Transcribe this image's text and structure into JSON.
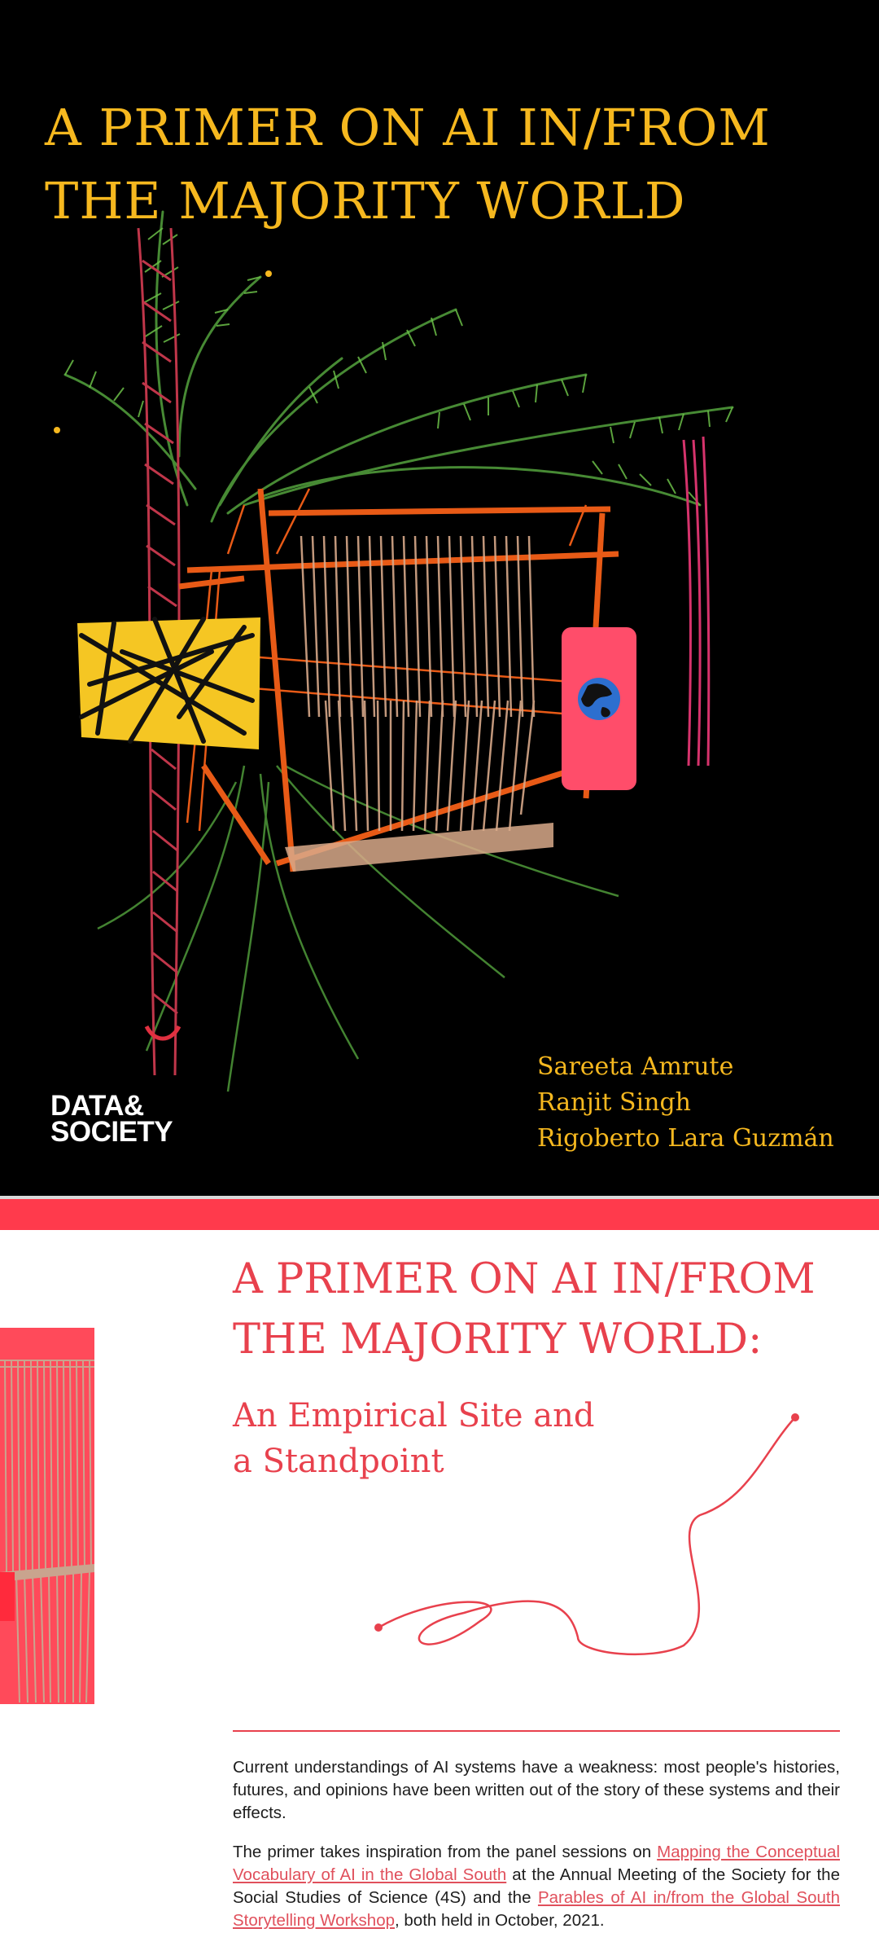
{
  "cover": {
    "title_line1": "A PRIMER ON AI IN/FROM",
    "title_line2": "THE MAJORITY WORLD",
    "authors": [
      "Sareeta Amrute",
      "Ranjit Singh",
      "Rigoberto Lara Guzmán"
    ],
    "logo_line1": "DATA&",
    "logo_line2": "SOCIETY",
    "colors": {
      "background": "#000000",
      "title": "#f6b81f"
    }
  },
  "page2": {
    "title_line1": "A PRIMER ON AI IN/FROM",
    "title_line2": "THE MAJORITY WORLD:",
    "subtitle_line1": "An Empirical Site and",
    "subtitle_line2": "a Standpoint",
    "paragraph1": "Current understandings of AI systems have a weakness: most people's histories, futures, and opinions have been written out of the story of these systems and their effects.",
    "paragraph2": {
      "text1": "The primer takes inspiration from the panel sessions on ",
      "link1": "Mapping the Conceptual Vocabulary of AI in the Global South",
      "text2": " at the Annual Meeting of the Society for the Social Studies of Science (4S) and the ",
      "link2": "Parables of AI in/from the Global South Storytelling Workshop",
      "text3": ", both held in October, 2021."
    },
    "colors": {
      "accent": "#e8414d",
      "band": "#ff3a4c"
    }
  }
}
